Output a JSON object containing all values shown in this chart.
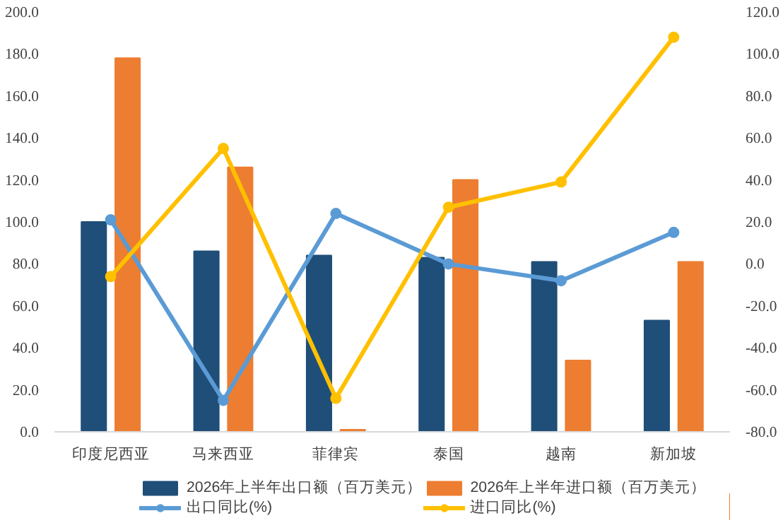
{
  "chart_data": {
    "type": "bar",
    "categories": [
      "印度尼西亚",
      "马来西亚",
      "菲律宾",
      "泰国",
      "越南",
      "新加坡"
    ],
    "series": [
      {
        "name": "2026年上半年出口额（百万美元）",
        "color": "#1f4e79",
        "values": [
          100,
          86,
          84,
          83,
          81,
          53
        ]
      },
      {
        "name": "2026年上半年进口额（百万美元）",
        "color": "#ed7d31",
        "values": [
          178,
          126,
          1,
          120,
          34,
          81
        ]
      },
      {
        "name": "出口同比(%)",
        "type": "line",
        "axis": "y2",
        "color": "#5b9bd5",
        "values": [
          21,
          -65,
          24,
          0,
          -8,
          15
        ]
      },
      {
        "name": "进口同比(%)",
        "type": "line",
        "axis": "y2",
        "color": "#ffc000",
        "values": [
          -6,
          55,
          -64,
          27,
          39,
          108
        ]
      }
    ],
    "ylim": [
      0,
      200
    ],
    "yticks": [
      {
        "value": 0,
        "label": "0.0"
      },
      {
        "value": 20,
        "label": "20.0"
      },
      {
        "value": 40,
        "label": "40.0"
      },
      {
        "value": 60,
        "label": "60.0"
      },
      {
        "value": 80,
        "label": "80.0"
      },
      {
        "value": 100,
        "label": "100.0"
      },
      {
        "value": 120,
        "label": "120.0"
      },
      {
        "value": 140,
        "label": "140.0"
      },
      {
        "value": 160,
        "label": "160.0"
      },
      {
        "value": 180,
        "label": "180.0"
      },
      {
        "value": 200,
        "label": "200.0"
      }
    ],
    "y2lim": [
      -80,
      120
    ],
    "y2ticks": [
      {
        "value": -80,
        "label": "-80.0"
      },
      {
        "value": -60,
        "label": "-60.0"
      },
      {
        "value": -40,
        "label": "-40.0"
      },
      {
        "value": -20,
        "label": "-20.0"
      },
      {
        "value": 0,
        "label": "0.0"
      },
      {
        "value": 20,
        "label": "20.0"
      },
      {
        "value": 40,
        "label": "40.0"
      },
      {
        "value": 60,
        "label": "60.0"
      },
      {
        "value": 80,
        "label": "80.0"
      },
      {
        "value": 100,
        "label": "100.0"
      },
      {
        "value": 120,
        "label": "120.0"
      }
    ],
    "marker": "circle",
    "grid": false,
    "legend": "bottom"
  }
}
